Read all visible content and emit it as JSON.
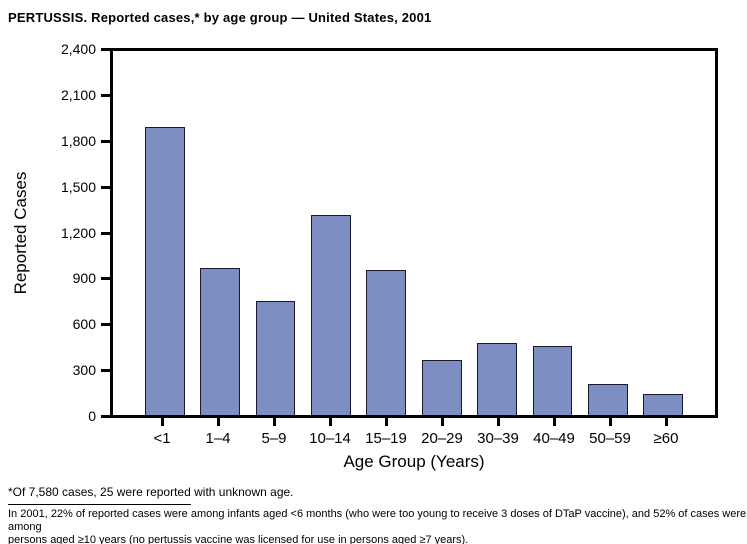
{
  "page": {
    "footnote1": "*Of 7,580 cases, 25 were reported with unknown age.",
    "footnote2_line1": "In 2001, 22% of reported cases were among infants aged <6 months (who were too young to receive 3 doses of DTaP vaccine), and 52% of cases were among",
    "footnote2_line2": "persons aged ≥10 years (no pertussis vaccine was licensed for use in persons aged ≥7 years)."
  },
  "chart_data": {
    "type": "bar",
    "title": "PERTUSSIS. Reported cases,* by age group — United States, 2001",
    "categories": [
      "<1",
      "1–4",
      "5–9",
      "10–14",
      "15–19",
      "20–29",
      "30–39",
      "40–49",
      "50–59",
      "≥60"
    ],
    "values": [
      1900,
      970,
      755,
      1320,
      955,
      365,
      475,
      455,
      205,
      140
    ],
    "xlabel": "Age Group (Years)",
    "ylabel": "Reported Cases",
    "ylim": [
      0,
      2400
    ],
    "yticks": [
      0,
      300,
      600,
      900,
      1200,
      1500,
      1800,
      2100,
      2400
    ],
    "ytick_labels": [
      "0",
      "300",
      "600",
      "900",
      "1,200",
      "1,500",
      "1,800",
      "2,100",
      "2,400"
    ],
    "grid": false,
    "legend": null,
    "bar_color": "#7d8ec3",
    "bar_border_color": "#161a2b",
    "axis_color": "#000000"
  }
}
